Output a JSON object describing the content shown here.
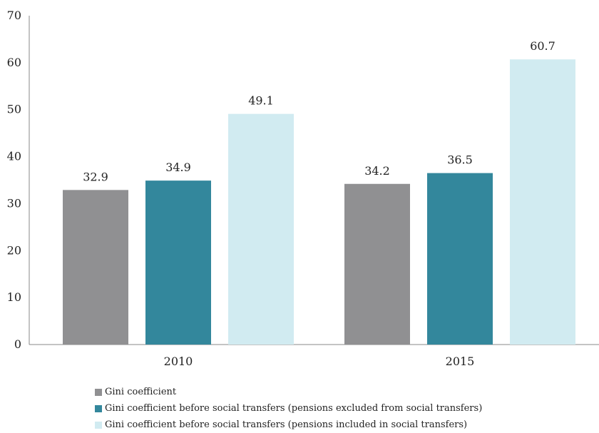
{
  "chart_data": {
    "type": "bar",
    "categories": [
      "2010",
      "2015"
    ],
    "series": [
      {
        "name": "Gini coefficient",
        "values": [
          32.9,
          34.2
        ],
        "color": "#909092"
      },
      {
        "name": "Gini coefficient before social transfers (pensions excluded from social transfers)",
        "values": [
          34.9,
          36.5
        ],
        "color": "#33879c"
      },
      {
        "name": "Gini coefficient before social transfers (pensions included in social transfers)",
        "values": [
          49.1,
          60.7
        ],
        "color": "#d1ebf1"
      }
    ],
    "ylim": [
      0,
      70
    ],
    "yticks": [
      0,
      10,
      20,
      30,
      40,
      50,
      60,
      70
    ],
    "data_labels": true,
    "grid": false,
    "legend_position": "bottom-left"
  }
}
